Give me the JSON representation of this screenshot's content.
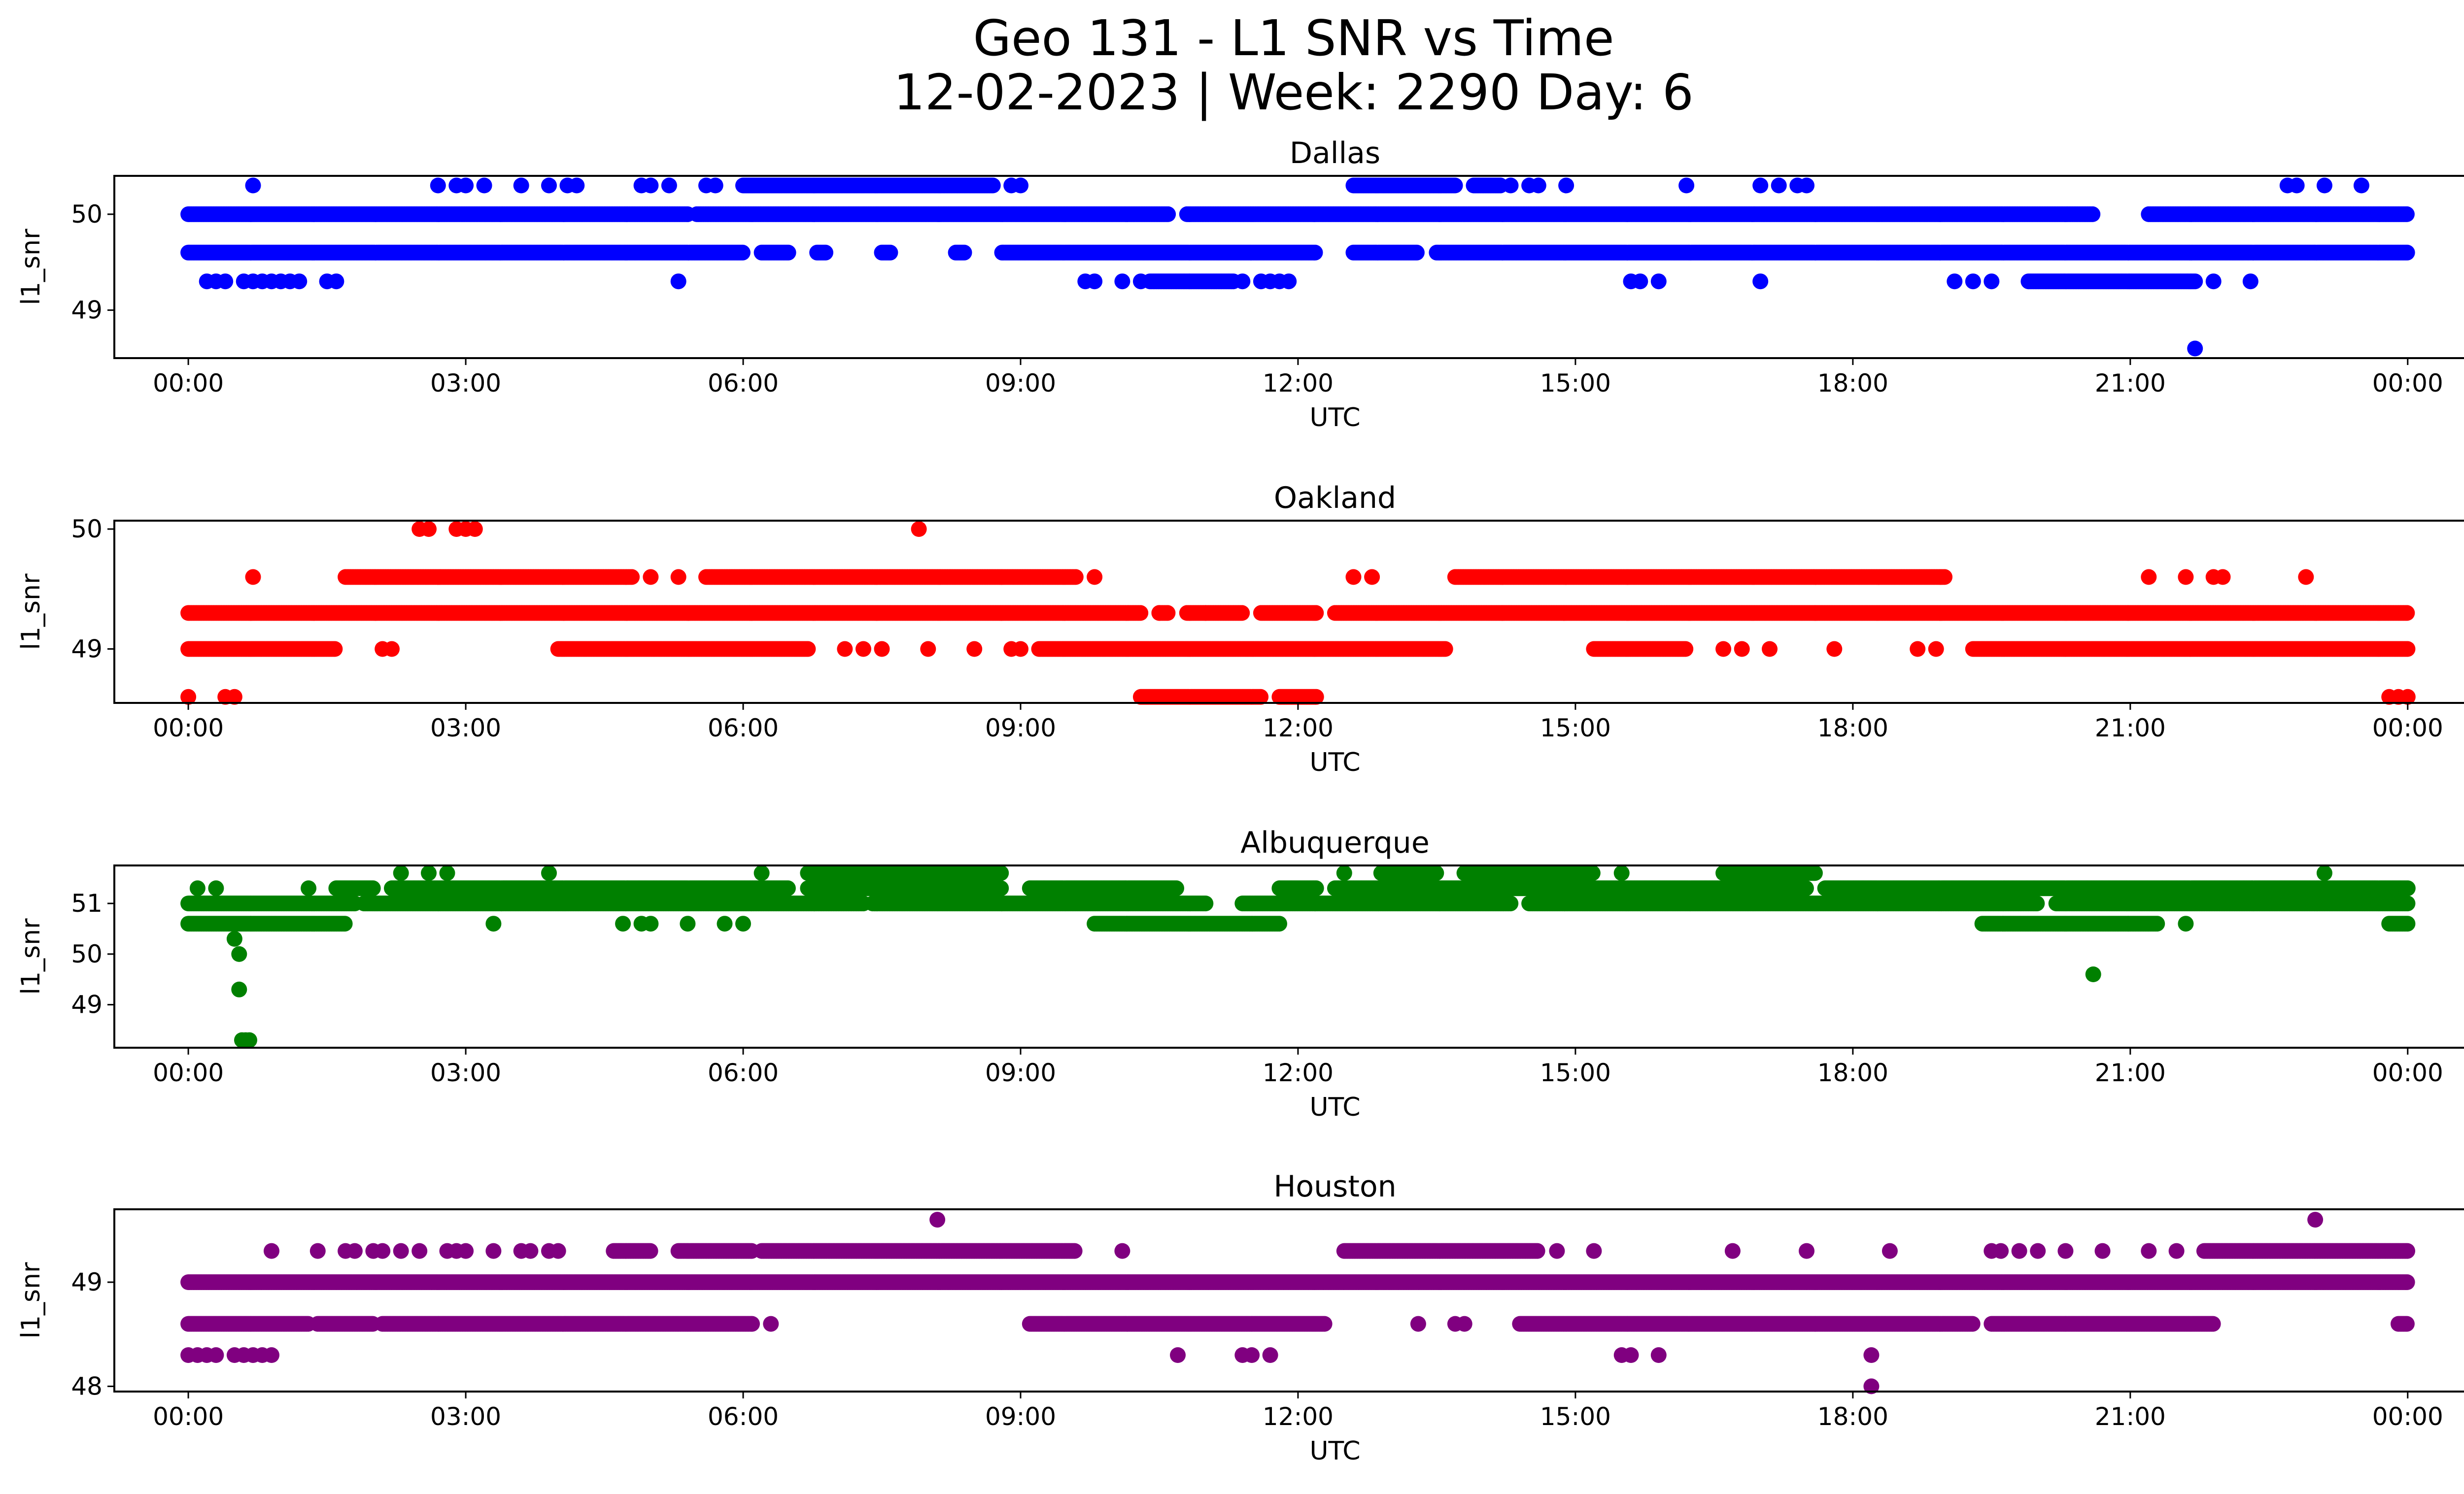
{
  "figure": {
    "title_line1": "Geo 131 - L1 SNR vs Time",
    "title_line2": "12-02-2023 | Week: 2290 Day: 6"
  },
  "chart_data": [
    {
      "type": "scatter",
      "title": "Dallas",
      "xlabel": "UTC",
      "ylabel": "l1_snr",
      "color": "#0000ff",
      "xlim": [
        -0.8,
        25.6
      ],
      "ylim": [
        48.5,
        50.4
      ],
      "xticks": [
        "00:00",
        "03:00",
        "06:00",
        "09:00",
        "12:00",
        "15:00",
        "18:00",
        "21:00",
        "00:00"
      ],
      "yticks": [
        49,
        50
      ],
      "x_unit": "hours UTC",
      "bands": [
        {
          "y": 50.0,
          "ranges": [
            [
              0,
              5.4
            ],
            [
              5.5,
              10.6
            ],
            [
              10.8,
              20.6
            ],
            [
              21.2,
              24.0
            ]
          ]
        },
        {
          "y": 49.6,
          "ranges": [
            [
              0,
              6.0
            ],
            [
              6.2,
              6.5
            ],
            [
              6.8,
              6.9
            ],
            [
              7.5,
              7.6
            ],
            [
              8.3,
              8.4
            ],
            [
              8.8,
              12.2
            ],
            [
              12.6,
              13.3
            ],
            [
              13.5,
              24.0
            ]
          ]
        },
        {
          "y": 50.3,
          "ranges": [
            [
              6.0,
              8.7
            ],
            [
              12.6,
              13.7
            ],
            [
              13.9,
              14.2
            ]
          ]
        },
        {
          "y": 49.3,
          "ranges": [
            [
              10.4,
              11.3
            ],
            [
              19.9,
              21.7
            ]
          ]
        }
      ],
      "points": [
        {
          "x": 0.2,
          "y": 49.3
        },
        {
          "x": 0.3,
          "y": 49.3
        },
        {
          "x": 0.4,
          "y": 49.3
        },
        {
          "x": 0.6,
          "y": 49.3
        },
        {
          "x": 0.7,
          "y": 49.3
        },
        {
          "x": 0.8,
          "y": 49.3
        },
        {
          "x": 0.9,
          "y": 49.3
        },
        {
          "x": 1.0,
          "y": 49.3
        },
        {
          "x": 1.1,
          "y": 49.3
        },
        {
          "x": 1.2,
          "y": 49.3
        },
        {
          "x": 1.5,
          "y": 49.3
        },
        {
          "x": 1.6,
          "y": 49.3
        },
        {
          "x": 5.3,
          "y": 49.3
        },
        {
          "x": 9.7,
          "y": 49.3
        },
        {
          "x": 9.8,
          "y": 49.3
        },
        {
          "x": 10.1,
          "y": 49.3
        },
        {
          "x": 10.3,
          "y": 49.3
        },
        {
          "x": 11.4,
          "y": 49.3
        },
        {
          "x": 11.6,
          "y": 49.3
        },
        {
          "x": 11.7,
          "y": 49.3
        },
        {
          "x": 11.8,
          "y": 49.3
        },
        {
          "x": 11.9,
          "y": 49.3
        },
        {
          "x": 15.6,
          "y": 49.3
        },
        {
          "x": 15.7,
          "y": 49.3
        },
        {
          "x": 15.9,
          "y": 49.3
        },
        {
          "x": 17.0,
          "y": 49.3
        },
        {
          "x": 19.1,
          "y": 49.3
        },
        {
          "x": 19.3,
          "y": 49.3
        },
        {
          "x": 19.5,
          "y": 49.3
        },
        {
          "x": 21.9,
          "y": 49.3
        },
        {
          "x": 22.3,
          "y": 49.3
        },
        {
          "x": 0.7,
          "y": 50.3
        },
        {
          "x": 2.7,
          "y": 50.3
        },
        {
          "x": 2.9,
          "y": 50.3
        },
        {
          "x": 3.0,
          "y": 50.3
        },
        {
          "x": 3.2,
          "y": 50.3
        },
        {
          "x": 3.6,
          "y": 50.3
        },
        {
          "x": 3.9,
          "y": 50.3
        },
        {
          "x": 4.1,
          "y": 50.3
        },
        {
          "x": 4.2,
          "y": 50.3
        },
        {
          "x": 4.9,
          "y": 50.3
        },
        {
          "x": 5.0,
          "y": 50.3
        },
        {
          "x": 5.2,
          "y": 50.3
        },
        {
          "x": 5.6,
          "y": 50.3
        },
        {
          "x": 5.7,
          "y": 50.3
        },
        {
          "x": 8.9,
          "y": 50.3
        },
        {
          "x": 9.0,
          "y": 50.3
        },
        {
          "x": 14.3,
          "y": 50.3
        },
        {
          "x": 14.5,
          "y": 50.3
        },
        {
          "x": 14.6,
          "y": 50.3
        },
        {
          "x": 14.9,
          "y": 50.3
        },
        {
          "x": 16.2,
          "y": 50.3
        },
        {
          "x": 17.0,
          "y": 50.3
        },
        {
          "x": 17.2,
          "y": 50.3
        },
        {
          "x": 17.4,
          "y": 50.3
        },
        {
          "x": 17.5,
          "y": 50.3
        },
        {
          "x": 22.7,
          "y": 50.3
        },
        {
          "x": 22.8,
          "y": 50.3
        },
        {
          "x": 23.1,
          "y": 50.3
        },
        {
          "x": 23.5,
          "y": 50.3
        },
        {
          "x": 21.7,
          "y": 48.6
        }
      ]
    },
    {
      "type": "scatter",
      "title": "Oakland",
      "xlabel": "UTC",
      "ylabel": "l1_snr",
      "color": "#ff0000",
      "xlim": [
        -0.8,
        25.6
      ],
      "ylim": [
        48.55,
        50.07
      ],
      "xticks": [
        "00:00",
        "03:00",
        "06:00",
        "09:00",
        "12:00",
        "15:00",
        "18:00",
        "21:00",
        "00:00"
      ],
      "yticks": [
        49,
        50
      ],
      "x_unit": "hours UTC",
      "bands": [
        {
          "y": 49.3,
          "ranges": [
            [
              0,
              10.3
            ],
            [
              10.5,
              10.6
            ],
            [
              10.8,
              11.4
            ],
            [
              11.6,
              12.2
            ],
            [
              12.4,
              24.0
            ]
          ]
        },
        {
          "y": 49.0,
          "ranges": [
            [
              0,
              1.6
            ],
            [
              4.0,
              6.7
            ],
            [
              9.2,
              13.6
            ],
            [
              15.2,
              16.2
            ],
            [
              19.3,
              24.0
            ]
          ]
        },
        {
          "y": 49.6,
          "ranges": [
            [
              1.7,
              4.8
            ],
            [
              5.6,
              9.6
            ],
            [
              13.7,
              19.0
            ]
          ]
        },
        {
          "y": 48.6,
          "ranges": [
            [
              10.3,
              11.6
            ],
            [
              11.8,
              12.2
            ]
          ]
        }
      ],
      "points": [
        {
          "x": 0.0,
          "y": 48.6
        },
        {
          "x": 0.4,
          "y": 48.6
        },
        {
          "x": 0.5,
          "y": 48.6
        },
        {
          "x": 23.8,
          "y": 48.6
        },
        {
          "x": 23.9,
          "y": 48.6
        },
        {
          "x": 24.0,
          "y": 48.6
        },
        {
          "x": 2.5,
          "y": 50.0
        },
        {
          "x": 2.6,
          "y": 50.0
        },
        {
          "x": 2.9,
          "y": 50.0
        },
        {
          "x": 3.0,
          "y": 50.0
        },
        {
          "x": 3.1,
          "y": 50.0
        },
        {
          "x": 7.9,
          "y": 50.0
        },
        {
          "x": 0.7,
          "y": 49.6
        },
        {
          "x": 5.0,
          "y": 49.6
        },
        {
          "x": 5.3,
          "y": 49.6
        },
        {
          "x": 9.8,
          "y": 49.6
        },
        {
          "x": 12.6,
          "y": 49.6
        },
        {
          "x": 12.8,
          "y": 49.6
        },
        {
          "x": 21.2,
          "y": 49.6
        },
        {
          "x": 21.6,
          "y": 49.6
        },
        {
          "x": 21.9,
          "y": 49.6
        },
        {
          "x": 22.0,
          "y": 49.6
        },
        {
          "x": 22.9,
          "y": 49.6
        },
        {
          "x": 2.1,
          "y": 49.0
        },
        {
          "x": 2.2,
          "y": 49.0
        },
        {
          "x": 7.1,
          "y": 49.0
        },
        {
          "x": 7.3,
          "y": 49.0
        },
        {
          "x": 7.5,
          "y": 49.0
        },
        {
          "x": 8.0,
          "y": 49.0
        },
        {
          "x": 8.5,
          "y": 49.0
        },
        {
          "x": 8.9,
          "y": 49.0
        },
        {
          "x": 9.0,
          "y": 49.0
        },
        {
          "x": 16.6,
          "y": 49.0
        },
        {
          "x": 16.8,
          "y": 49.0
        },
        {
          "x": 17.1,
          "y": 49.0
        },
        {
          "x": 17.8,
          "y": 49.0
        },
        {
          "x": 18.7,
          "y": 49.0
        },
        {
          "x": 18.9,
          "y": 49.0
        },
        {
          "x": 10.5,
          "y": 49.3
        },
        {
          "x": 11.0,
          "y": 49.3
        }
      ]
    },
    {
      "type": "scatter",
      "title": "Albuquerque",
      "xlabel": "UTC",
      "ylabel": "l1_snr",
      "color": "#008000",
      "xlim": [
        -0.8,
        25.6
      ],
      "ylim": [
        48.15,
        51.75
      ],
      "xticks": [
        "00:00",
        "03:00",
        "06:00",
        "09:00",
        "12:00",
        "15:00",
        "18:00",
        "21:00",
        "00:00"
      ],
      "yticks": [
        49,
        50,
        51
      ],
      "x_unit": "hours UTC",
      "bands": [
        {
          "y": 51.0,
          "ranges": [
            [
              0,
              1.8
            ],
            [
              1.9,
              7.3
            ],
            [
              7.4,
              11.0
            ],
            [
              11.4,
              14.3
            ],
            [
              14.5,
              20.0
            ],
            [
              20.2,
              24.0
            ]
          ]
        },
        {
          "y": 51.3,
          "ranges": [
            [
              1.6,
              2.0
            ],
            [
              2.2,
              6.5
            ],
            [
              6.7,
              8.8
            ],
            [
              9.1,
              10.7
            ],
            [
              11.8,
              12.2
            ],
            [
              12.4,
              17.5
            ],
            [
              17.7,
              24.0
            ]
          ]
        },
        {
          "y": 50.6,
          "ranges": [
            [
              0,
              1.7
            ],
            [
              9.8,
              11.8
            ],
            [
              19.4,
              21.3
            ],
            [
              23.8,
              24.0
            ]
          ]
        },
        {
          "y": 51.6,
          "ranges": [
            [
              6.7,
              8.8
            ],
            [
              12.9,
              13.5
            ],
            [
              13.8,
              15.2
            ],
            [
              16.6,
              17.6
            ]
          ]
        }
      ],
      "points": [
        {
          "x": 0.1,
          "y": 51.3
        },
        {
          "x": 0.3,
          "y": 51.3
        },
        {
          "x": 1.3,
          "y": 51.3
        },
        {
          "x": 0.5,
          "y": 50.3
        },
        {
          "x": 0.55,
          "y": 50.0
        },
        {
          "x": 0.55,
          "y": 49.3
        },
        {
          "x": 0.58,
          "y": 48.3
        },
        {
          "x": 0.62,
          "y": 48.3
        },
        {
          "x": 0.66,
          "y": 48.3
        },
        {
          "x": 2.3,
          "y": 51.6
        },
        {
          "x": 2.6,
          "y": 51.6
        },
        {
          "x": 2.8,
          "y": 51.6
        },
        {
          "x": 3.9,
          "y": 51.6
        },
        {
          "x": 6.2,
          "y": 51.6
        },
        {
          "x": 12.5,
          "y": 51.6
        },
        {
          "x": 13.8,
          "y": 51.6
        },
        {
          "x": 15.5,
          "y": 51.6
        },
        {
          "x": 23.1,
          "y": 51.6
        },
        {
          "x": 3.3,
          "y": 50.6
        },
        {
          "x": 4.7,
          "y": 50.6
        },
        {
          "x": 4.9,
          "y": 50.6
        },
        {
          "x": 5.0,
          "y": 50.6
        },
        {
          "x": 5.4,
          "y": 50.6
        },
        {
          "x": 5.8,
          "y": 50.6
        },
        {
          "x": 6.0,
          "y": 50.6
        },
        {
          "x": 21.6,
          "y": 50.6
        },
        {
          "x": 20.6,
          "y": 49.6
        }
      ]
    },
    {
      "type": "scatter",
      "title": "Houston",
      "xlabel": "UTC",
      "ylabel": "l1_snr",
      "color": "#800080",
      "xlim": [
        -0.8,
        25.6
      ],
      "ylim": [
        47.95,
        49.7
      ],
      "xticks": [
        "00:00",
        "03:00",
        "06:00",
        "09:00",
        "12:00",
        "15:00",
        "18:00",
        "21:00",
        "00:00"
      ],
      "yticks": [
        48,
        49
      ],
      "x_unit": "hours UTC",
      "bands": [
        {
          "y": 49.0,
          "ranges": [
            [
              0,
              24.0
            ]
          ]
        },
        {
          "y": 48.6,
          "ranges": [
            [
              0,
              1.3
            ],
            [
              1.4,
              2.0
            ],
            [
              2.1,
              6.1
            ],
            [
              9.1,
              12.3
            ],
            [
              14.4,
              16.0
            ],
            [
              16.0,
              19.3
            ],
            [
              19.5,
              21.9
            ],
            [
              23.9,
              24.0
            ]
          ]
        },
        {
          "y": 49.3,
          "ranges": [
            [
              4.6,
              5.0
            ],
            [
              5.3,
              6.1
            ],
            [
              6.2,
              9.6
            ],
            [
              12.5,
              14.6
            ],
            [
              21.8,
              24.0
            ]
          ]
        }
      ],
      "points": [
        {
          "x": 0.0,
          "y": 48.3
        },
        {
          "x": 0.1,
          "y": 48.3
        },
        {
          "x": 0.2,
          "y": 48.3
        },
        {
          "x": 0.3,
          "y": 48.3
        },
        {
          "x": 0.5,
          "y": 48.3
        },
        {
          "x": 0.6,
          "y": 48.3
        },
        {
          "x": 0.7,
          "y": 48.3
        },
        {
          "x": 0.8,
          "y": 48.3
        },
        {
          "x": 0.9,
          "y": 48.3
        },
        {
          "x": 10.7,
          "y": 48.3
        },
        {
          "x": 11.4,
          "y": 48.3
        },
        {
          "x": 11.5,
          "y": 48.3
        },
        {
          "x": 11.7,
          "y": 48.3
        },
        {
          "x": 15.5,
          "y": 48.3
        },
        {
          "x": 15.6,
          "y": 48.3
        },
        {
          "x": 15.9,
          "y": 48.3
        },
        {
          "x": 18.2,
          "y": 48.3
        },
        {
          "x": 18.2,
          "y": 48.0
        },
        {
          "x": 0.9,
          "y": 49.3
        },
        {
          "x": 1.4,
          "y": 49.3
        },
        {
          "x": 1.7,
          "y": 49.3
        },
        {
          "x": 1.8,
          "y": 49.3
        },
        {
          "x": 2.0,
          "y": 49.3
        },
        {
          "x": 2.1,
          "y": 49.3
        },
        {
          "x": 2.3,
          "y": 49.3
        },
        {
          "x": 2.5,
          "y": 49.3
        },
        {
          "x": 2.8,
          "y": 49.3
        },
        {
          "x": 2.9,
          "y": 49.3
        },
        {
          "x": 3.0,
          "y": 49.3
        },
        {
          "x": 3.3,
          "y": 49.3
        },
        {
          "x": 3.6,
          "y": 49.3
        },
        {
          "x": 3.7,
          "y": 49.3
        },
        {
          "x": 3.9,
          "y": 49.3
        },
        {
          "x": 4.0,
          "y": 49.3
        },
        {
          "x": 10.1,
          "y": 49.3
        },
        {
          "x": 14.8,
          "y": 49.3
        },
        {
          "x": 15.2,
          "y": 49.3
        },
        {
          "x": 16.7,
          "y": 49.3
        },
        {
          "x": 17.5,
          "y": 49.3
        },
        {
          "x": 18.4,
          "y": 49.3
        },
        {
          "x": 19.5,
          "y": 49.3
        },
        {
          "x": 19.6,
          "y": 49.3
        },
        {
          "x": 19.8,
          "y": 49.3
        },
        {
          "x": 20.0,
          "y": 49.3
        },
        {
          "x": 20.3,
          "y": 49.3
        },
        {
          "x": 20.7,
          "y": 49.3
        },
        {
          "x": 21.2,
          "y": 49.3
        },
        {
          "x": 21.5,
          "y": 49.3
        },
        {
          "x": 6.3,
          "y": 48.6
        },
        {
          "x": 13.3,
          "y": 48.6
        },
        {
          "x": 13.7,
          "y": 48.6
        },
        {
          "x": 13.8,
          "y": 48.6
        },
        {
          "x": 8.1,
          "y": 49.6
        },
        {
          "x": 23.0,
          "y": 49.6
        }
      ]
    }
  ]
}
